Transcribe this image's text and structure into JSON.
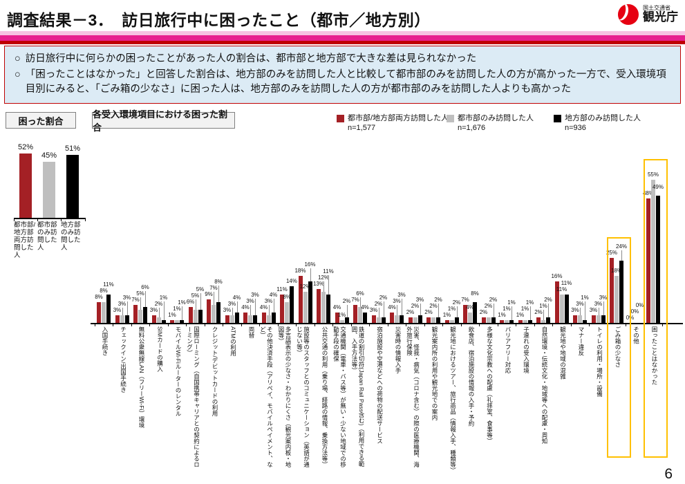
{
  "header": {
    "title": "調査結果－3．　訪日旅行中に困ったこと（都市／地方別）",
    "agency_small": "国土交通省",
    "agency_large": "観光庁"
  },
  "bullets": [
    {
      "marker": "○",
      "text": "訪日旅行中に何らかの困ったことがあった人の割合は、都市部と地方部で大きな差は見られなかった"
    },
    {
      "marker": "○",
      "text": "「困ったことはなかった」と回答した割合は、地方部のみを訪問した人と比較して都市部のみを訪問した人の方が高かった一方で、受入環境項目別にみると、「ごみ箱の少なさ」に困った人は、地方部のみを訪問した人の方が都市部のみを訪問した人よりも高かった"
    }
  ],
  "section_labels": {
    "left_box": "困った割合",
    "right_box": "各受入環境項目における困った割合"
  },
  "legend": {
    "items": [
      {
        "label": "都市部/地方部両方訪問した人",
        "n": "n=1,577",
        "color": "#a42025"
      },
      {
        "label": "都市部のみ訪問した人",
        "n": "n=1,676",
        "color": "#bfbfbf"
      },
      {
        "label": "地方部のみ訪問した人",
        "n": "n=936",
        "color": "#000000"
      }
    ]
  },
  "page_number": "6",
  "colors": {
    "series_both": "#a42025",
    "series_urban": "#bfbfbf",
    "series_rural": "#000000",
    "highlight_box": "#ffc000",
    "header_pink": "#e7218f",
    "header_red": "#bf0000",
    "note_box_bg": "#dcebf5"
  },
  "chart_data": [
    {
      "type": "bar",
      "title": "困った割合",
      "categories": [
        "都市部/地方部両方訪問した人",
        "都市部のみ訪問した人",
        "地方部のみ訪問した人"
      ],
      "values": [
        52,
        45,
        51
      ],
      "colors": [
        "#a42025",
        "#bfbfbf",
        "#000000"
      ],
      "unit": "%",
      "ylim": [
        0,
        60
      ]
    },
    {
      "type": "grouped-bar",
      "title": "各受入環境項目における困った割合",
      "unit": "%",
      "ylim": [
        0,
        60
      ],
      "categories": [
        "入国手続き",
        "チェックイン/出国手続き",
        "無料公衆無線LAN（フリーWi-Fi）環境",
        "SIMカードの購入",
        "モバイルWi-Fiルーターのレンタル",
        "国際ローミング（自国携帯キャリアとの契約によるローミング）",
        "クレジット/デビットカードの利用",
        "ATMの利用",
        "両替",
        "その他決済手段（アリペイ、モバイルペイメント、など）",
        "多言語表示の少なさ・わかりにくさ（観光案内板・地図等）",
        "施設等のスタッフとのコミュニケーション（英語が通じない等）",
        "公共交通の利用（乗り場、経路の情報、乗換方法等）",
        "交通機関（電車・バス等）が無い・少ない地域での移動手段の確保",
        "鉄道の割引切符(Japan Rail Pass含む)（利用できる範囲、入手方法等）",
        "宿泊施設や空港などへの荷物の配送サービス",
        "災害時の情報入手",
        "災害、怪我・病気（コロナ含む）の際の医療機関、海外旅行保険",
        "観光案内所の利用や観光地での案内",
        "観光地におけるツアー、旅行商品（情報入手、種類等）",
        "飲食店、宿泊施設の情報の入手・予約",
        "多様な文化宗教への配慮（礼拝室、食事等）",
        "バリアフリー対応",
        "子連れの受入環境",
        "自然環境・伝統文化・地域等への配慮・周知",
        "観光地や地域の混雑",
        "マナー違反",
        "トイレの利用・場所・設備",
        "ごみ箱の少なさ",
        "その他",
        "困ったことはなかった"
      ],
      "series": [
        {
          "name": "都市部/地方部両方訪問した人",
          "n": "n=1,577",
          "color": "#a42025",
          "values": [
            8,
            3,
            7,
            3,
            1,
            6,
            9,
            3,
            4,
            4,
            11,
            18,
            13,
            4,
            7,
            3,
            4,
            2,
            2,
            1,
            7,
            2,
            1,
            1,
            2,
            16,
            3,
            3,
            25,
            0,
            48
          ]
        },
        {
          "name": "都市部のみ訪問した人",
          "n": "n=1,676",
          "color": "#bfbfbf",
          "values": [
            8,
            3,
            5,
            2,
            1,
            5,
            7,
            3,
            3,
            3,
            8,
            12,
            12,
            1,
            6,
            2,
            3,
            2,
            2,
            1,
            4,
            2,
            1,
            1,
            1,
            11,
            3,
            3,
            18,
            0,
            55
          ]
        },
        {
          "name": "地方部のみ訪問した人",
          "n": "n=936",
          "color": "#000000",
          "values": [
            11,
            3,
            6,
            1,
            1,
            5,
            8,
            4,
            3,
            4,
            14,
            16,
            11,
            2,
            4,
            2,
            3,
            3,
            2,
            2,
            8,
            2,
            1,
            1,
            2,
            11,
            1,
            3,
            24,
            0,
            49
          ]
        }
      ],
      "highlighted_categories": [
        "ごみ箱の少なさ",
        "困ったことはなかった"
      ],
      "legend_position": "top-right",
      "grid": false
    }
  ]
}
